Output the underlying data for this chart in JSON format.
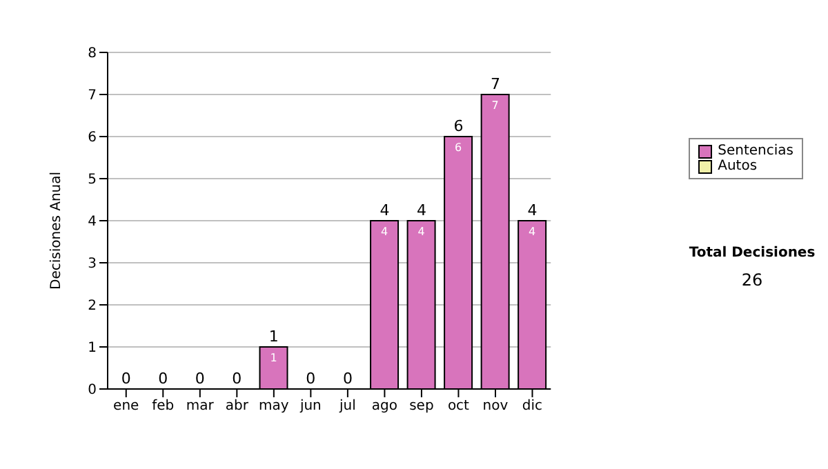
{
  "chart_data": {
    "type": "bar",
    "ylabel": "Decisiones Anual",
    "categories": [
      "ene",
      "feb",
      "mar",
      "abr",
      "may",
      "jun",
      "jul",
      "ago",
      "sep",
      "oct",
      "nov",
      "dic"
    ],
    "series": [
      {
        "name": "Sentencias",
        "color": "#d874bc",
        "values": [
          0,
          0,
          0,
          0,
          1,
          0,
          0,
          4,
          4,
          6,
          7,
          4
        ],
        "value_labels": [
          null,
          null,
          null,
          null,
          "1",
          null,
          null,
          "4",
          "4",
          "6",
          "7",
          "4"
        ]
      },
      {
        "name": "Autos",
        "color": "#f0f0a8",
        "values": [
          0,
          0,
          0,
          0,
          0,
          0,
          0,
          0,
          0,
          0,
          0,
          0
        ]
      }
    ],
    "stacked": true,
    "totals": [
      "0",
      "0",
      "0",
      "0",
      "1",
      "0",
      "0",
      "4",
      "4",
      "6",
      "7",
      "4"
    ],
    "ylim": [
      0,
      8
    ],
    "yticks": [
      0,
      1,
      2,
      3,
      4,
      5,
      6,
      7,
      8
    ],
    "grid": "y",
    "legend": "right",
    "annotations": [
      "Total Decisiones",
      "26"
    ]
  }
}
